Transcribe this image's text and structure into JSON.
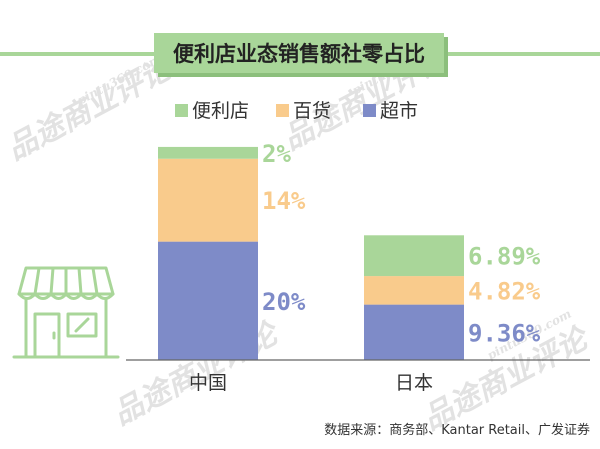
{
  "chart_data": {
    "type": "bar",
    "stacked": true,
    "title": "便利店业态销售额社零占比",
    "categories": [
      "中国",
      "日本"
    ],
    "series": [
      {
        "name": "超市",
        "color": "#7E8BC8",
        "values": [
          20,
          9.36
        ],
        "labels": [
          "20%",
          "9.36%"
        ]
      },
      {
        "name": "百货",
        "color": "#F9CB8C",
        "values": [
          14,
          4.82
        ],
        "labels": [
          "14%",
          "4.82%"
        ]
      },
      {
        "name": "便利店",
        "color": "#A9D699",
        "values": [
          2,
          6.89
        ],
        "labels": [
          "2%",
          "6.89%"
        ]
      }
    ],
    "legend": {
      "placement": "top",
      "order": [
        "便利店",
        "百货",
        "超市"
      ]
    },
    "ylim": [
      0,
      37
    ],
    "grid": false,
    "source": "数据来源：商务部、Kantar Retail、广发证券"
  },
  "colors": {
    "title_bg": "#A9D699",
    "title_text": "#222222",
    "axis": "#666666",
    "text": "#333333",
    "store_icon": "#A9D699",
    "watermark": "#E2E2E2"
  },
  "watermark": {
    "text": "品途商业评论",
    "url": "pintu360.com"
  },
  "icons": {
    "storefront": "storefront-icon"
  }
}
